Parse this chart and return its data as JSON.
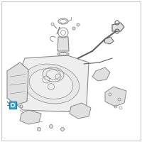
{
  "bg_color": "#ffffff",
  "border_color": "#c8c8c8",
  "line_color": "#8a8a8a",
  "dark_line": "#606060",
  "fill_light": "#eeeeee",
  "fill_mid": "#e0e0e0",
  "highlight_color": "#3ab5d5",
  "highlight_border": "#1a7aaa",
  "fig_size": [
    2.0,
    2.0
  ],
  "dpi": 100
}
